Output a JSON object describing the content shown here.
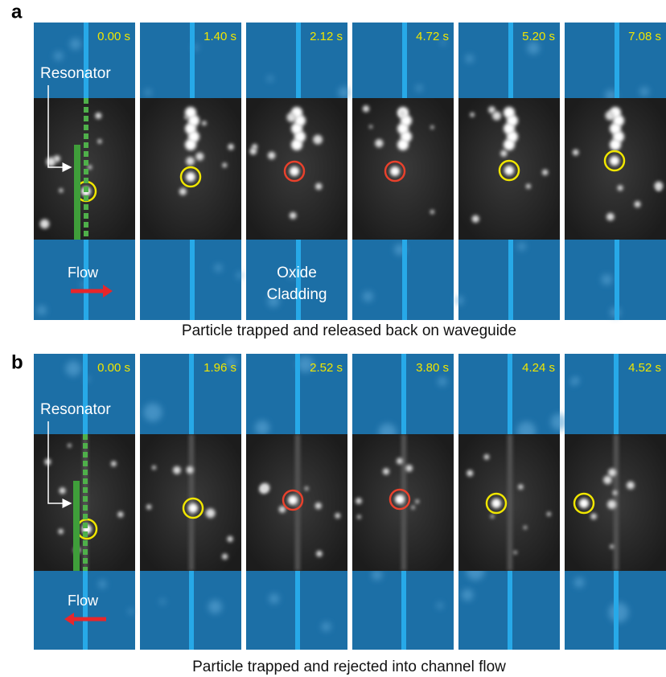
{
  "panels": [
    {
      "label": "a",
      "timestamps": [
        "0.00 s",
        "1.40 s",
        "2.12 s",
        "4.72 s",
        "5.20 s",
        "7.08 s"
      ],
      "resonator": "Resonator",
      "flow": "Flow",
      "cladding": [
        "Oxide",
        "Cladding"
      ],
      "caption": "Particle trapped and released back on waveguide"
    },
    {
      "label": "b",
      "timestamps": [
        "0.00 s",
        "1.96 s",
        "2.52 s",
        "3.80 s",
        "4.24 s",
        "4.52 s"
      ],
      "resonator": "Resonator",
      "flow": "Flow",
      "caption": "Particle trapped and rejected into channel flow"
    }
  ]
}
